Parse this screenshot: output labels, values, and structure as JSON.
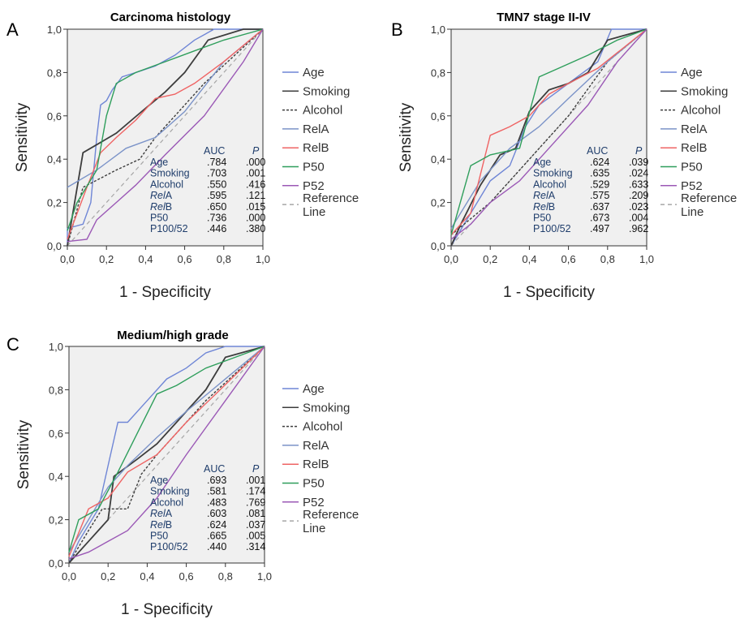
{
  "chart_data": [
    {
      "type": "line",
      "panel_label": "A",
      "title": "Carcinoma histology",
      "xlabel": "1 - Specificity",
      "ylabel": "Sensitivity",
      "xlim": [
        0,
        1
      ],
      "ylim": [
        0,
        1
      ],
      "xticks": [
        "0,0",
        "0,2",
        "0,4",
        "0,6",
        "0,8",
        "1,0"
      ],
      "yticks": [
        "0,0",
        "0,2",
        "0,4",
        "0,6",
        "0,8",
        "1,0"
      ],
      "legend": [
        "Age",
        "Smoking",
        "Alcohol",
        "RelA",
        "RelB",
        "P50",
        "P52",
        "Reference Line"
      ],
      "auc_header": [
        "AUC",
        "P"
      ],
      "auc_rows": [
        {
          "name": "Age",
          "auc": ".784",
          "p": ".000"
        },
        {
          "name": "Smoking",
          "auc": ".703",
          "p": ".001"
        },
        {
          "name": "Alcohol",
          "auc": ".550",
          "p": ".416"
        },
        {
          "name": "RelA",
          "auc": ".595",
          "p": ".121"
        },
        {
          "name": "RelB",
          "auc": ".650",
          "p": ".015"
        },
        {
          "name": "P50",
          "auc": ".736",
          "p": ".000"
        },
        {
          "name": "P100/52",
          "auc": ".446",
          "p": ".380"
        }
      ],
      "series": [
        {
          "name": "Age",
          "points": [
            [
              0,
              0
            ],
            [
              0,
              0.08
            ],
            [
              0.08,
              0.1
            ],
            [
              0.12,
              0.2
            ],
            [
              0.15,
              0.5
            ],
            [
              0.17,
              0.65
            ],
            [
              0.2,
              0.67
            ],
            [
              0.23,
              0.72
            ],
            [
              0.28,
              0.78
            ],
            [
              0.35,
              0.8
            ],
            [
              0.45,
              0.83
            ],
            [
              0.55,
              0.88
            ],
            [
              0.65,
              0.95
            ],
            [
              0.75,
              1
            ],
            [
              1,
              1
            ]
          ]
        },
        {
          "name": "Smoking",
          "points": [
            [
              0,
              0
            ],
            [
              0.08,
              0.43
            ],
            [
              0.25,
              0.52
            ],
            [
              0.38,
              0.62
            ],
            [
              0.5,
              0.71
            ],
            [
              0.6,
              0.8
            ],
            [
              0.72,
              0.95
            ],
            [
              0.9,
              1
            ],
            [
              1,
              1
            ]
          ]
        },
        {
          "name": "Alcohol",
          "points": [
            [
              0,
              0
            ],
            [
              0.08,
              0.27
            ],
            [
              0.25,
              0.35
            ],
            [
              0.37,
              0.4
            ],
            [
              0.45,
              0.5
            ],
            [
              0.55,
              0.6
            ],
            [
              0.7,
              0.75
            ],
            [
              1,
              1
            ]
          ]
        },
        {
          "name": "RelA",
          "points": [
            [
              0,
              0.27
            ],
            [
              0.15,
              0.35
            ],
            [
              0.3,
              0.45
            ],
            [
              0.45,
              0.5
            ],
            [
              0.6,
              0.62
            ],
            [
              0.8,
              0.85
            ],
            [
              1,
              1
            ]
          ]
        },
        {
          "name": "RelB",
          "points": [
            [
              0,
              0.03
            ],
            [
              0.1,
              0.27
            ],
            [
              0.17,
              0.43
            ],
            [
              0.25,
              0.5
            ],
            [
              0.35,
              0.58
            ],
            [
              0.45,
              0.68
            ],
            [
              0.55,
              0.7
            ],
            [
              0.65,
              0.75
            ],
            [
              0.8,
              0.85
            ],
            [
              1,
              1
            ]
          ]
        },
        {
          "name": "P50",
          "points": [
            [
              0,
              0.07
            ],
            [
              0.05,
              0.2
            ],
            [
              0.15,
              0.35
            ],
            [
              0.2,
              0.6
            ],
            [
              0.25,
              0.75
            ],
            [
              0.35,
              0.8
            ],
            [
              0.5,
              0.85
            ],
            [
              0.65,
              0.9
            ],
            [
              0.8,
              0.95
            ],
            [
              1,
              1
            ]
          ]
        },
        {
          "name": "P52",
          "points": [
            [
              0,
              0.02
            ],
            [
              0.1,
              0.03
            ],
            [
              0.15,
              0.12
            ],
            [
              0.25,
              0.2
            ],
            [
              0.35,
              0.28
            ],
            [
              0.5,
              0.42
            ],
            [
              0.7,
              0.6
            ],
            [
              0.9,
              0.85
            ],
            [
              1,
              1
            ]
          ]
        }
      ]
    },
    {
      "type": "line",
      "panel_label": "B",
      "title": "TMN7 stage II-IV",
      "xlabel": "1 - Specificity",
      "ylabel": "Sensitivity",
      "xlim": [
        0,
        1
      ],
      "ylim": [
        0,
        1
      ],
      "xticks": [
        "0,0",
        "0,2",
        "0,4",
        "0,6",
        "0,8",
        "1,0"
      ],
      "yticks": [
        "0,0",
        "0,2",
        "0,4",
        "0,6",
        "0,8",
        "1,0"
      ],
      "legend": [
        "Age",
        "Smoking",
        "Alcohol",
        "RelA",
        "RelB",
        "P50",
        "P52",
        "Reference Line"
      ],
      "auc_header": [
        "AUC",
        "P"
      ],
      "auc_rows": [
        {
          "name": "Age",
          "auc": ".624",
          "p": ".039"
        },
        {
          "name": "Smoking",
          "auc": ".635",
          "p": ".024"
        },
        {
          "name": "Alcohol",
          "auc": ".529",
          "p": ".633"
        },
        {
          "name": "RelA",
          "auc": ".575",
          "p": ".209"
        },
        {
          "name": "RelB",
          "auc": ".637",
          "p": ".023"
        },
        {
          "name": "P50",
          "auc": ".673",
          "p": ".004"
        },
        {
          "name": "P100/52",
          "auc": ".497",
          "p": ".962"
        }
      ],
      "series": [
        {
          "name": "Age",
          "points": [
            [
              0,
              0
            ],
            [
              0.1,
              0.15
            ],
            [
              0.2,
              0.3
            ],
            [
              0.3,
              0.37
            ],
            [
              0.38,
              0.55
            ],
            [
              0.45,
              0.65
            ],
            [
              0.6,
              0.75
            ],
            [
              0.75,
              0.85
            ],
            [
              0.82,
              1
            ],
            [
              1,
              1
            ]
          ]
        },
        {
          "name": "Smoking",
          "points": [
            [
              0,
              0
            ],
            [
              0.05,
              0.1
            ],
            [
              0.15,
              0.28
            ],
            [
              0.25,
              0.42
            ],
            [
              0.33,
              0.45
            ],
            [
              0.4,
              0.62
            ],
            [
              0.5,
              0.72
            ],
            [
              0.6,
              0.75
            ],
            [
              0.7,
              0.8
            ],
            [
              0.8,
              0.95
            ],
            [
              1,
              1
            ]
          ]
        },
        {
          "name": "Alcohol",
          "points": [
            [
              0,
              0.05
            ],
            [
              0.2,
              0.2
            ],
            [
              0.35,
              0.35
            ],
            [
              0.45,
              0.45
            ],
            [
              0.6,
              0.6
            ],
            [
              0.8,
              0.85
            ],
            [
              1,
              1
            ]
          ]
        },
        {
          "name": "RelA",
          "points": [
            [
              0,
              0.08
            ],
            [
              0.15,
              0.3
            ],
            [
              0.3,
              0.45
            ],
            [
              0.45,
              0.55
            ],
            [
              0.6,
              0.68
            ],
            [
              0.8,
              0.85
            ],
            [
              1,
              1
            ]
          ]
        },
        {
          "name": "RelB",
          "points": [
            [
              0,
              0.05
            ],
            [
              0.1,
              0.15
            ],
            [
              0.2,
              0.51
            ],
            [
              0.3,
              0.55
            ],
            [
              0.4,
              0.6
            ],
            [
              0.5,
              0.7
            ],
            [
              0.6,
              0.75
            ],
            [
              0.75,
              0.82
            ],
            [
              1,
              1
            ]
          ]
        },
        {
          "name": "P50",
          "points": [
            [
              0,
              0.05
            ],
            [
              0.1,
              0.37
            ],
            [
              0.2,
              0.42
            ],
            [
              0.35,
              0.45
            ],
            [
              0.45,
              0.78
            ],
            [
              0.55,
              0.82
            ],
            [
              0.7,
              0.88
            ],
            [
              0.85,
              0.95
            ],
            [
              1,
              1
            ]
          ]
        },
        {
          "name": "P52",
          "points": [
            [
              0,
              0.03
            ],
            [
              0.1,
              0.1
            ],
            [
              0.2,
              0.2
            ],
            [
              0.35,
              0.3
            ],
            [
              0.5,
              0.45
            ],
            [
              0.7,
              0.65
            ],
            [
              0.85,
              0.85
            ],
            [
              1,
              1
            ]
          ]
        }
      ]
    },
    {
      "type": "line",
      "panel_label": "C",
      "title": "Medium/high grade",
      "xlabel": "1 - Specificity",
      "ylabel": "Sensitivity",
      "xlim": [
        0,
        1
      ],
      "ylim": [
        0,
        1
      ],
      "xticks": [
        "0,0",
        "0,2",
        "0,4",
        "0,6",
        "0,8",
        "1,0"
      ],
      "yticks": [
        "0,0",
        "0,2",
        "0,4",
        "0,6",
        "0,8",
        "1,0"
      ],
      "legend": [
        "Age",
        "Smoking",
        "Alcohol",
        "RelA",
        "RelB",
        "P50",
        "P52",
        "Reference Line"
      ],
      "auc_header": [
        "AUC",
        "P"
      ],
      "auc_rows": [
        {
          "name": "Age",
          "auc": ".693",
          "p": ".001"
        },
        {
          "name": "Smoking",
          "auc": ".581",
          "p": ".174"
        },
        {
          "name": "Alcohol",
          "auc": ".483",
          "p": ".769"
        },
        {
          "name": "RelA",
          "auc": ".603",
          "p": ".081"
        },
        {
          "name": "RelB",
          "auc": ".624",
          "p": ".037"
        },
        {
          "name": "P50",
          "auc": ".665",
          "p": ".005"
        },
        {
          "name": "P100/52",
          "auc": ".440",
          "p": ".314"
        }
      ],
      "series": [
        {
          "name": "Age",
          "points": [
            [
              0,
              0
            ],
            [
              0.05,
              0.1
            ],
            [
              0.15,
              0.25
            ],
            [
              0.2,
              0.45
            ],
            [
              0.25,
              0.65
            ],
            [
              0.3,
              0.65
            ],
            [
              0.4,
              0.75
            ],
            [
              0.5,
              0.85
            ],
            [
              0.6,
              0.9
            ],
            [
              0.7,
              0.97
            ],
            [
              0.8,
              1
            ],
            [
              1,
              1
            ]
          ]
        },
        {
          "name": "Smoking",
          "points": [
            [
              0,
              0
            ],
            [
              0.1,
              0.1
            ],
            [
              0.2,
              0.2
            ],
            [
              0.23,
              0.4
            ],
            [
              0.35,
              0.48
            ],
            [
              0.45,
              0.55
            ],
            [
              0.55,
              0.65
            ],
            [
              0.7,
              0.8
            ],
            [
              0.8,
              0.95
            ],
            [
              1,
              1
            ]
          ]
        },
        {
          "name": "Alcohol",
          "points": [
            [
              0,
              0
            ],
            [
              0.1,
              0.15
            ],
            [
              0.17,
              0.25
            ],
            [
              0.3,
              0.25
            ],
            [
              0.37,
              0.41
            ],
            [
              0.45,
              0.5
            ],
            [
              0.55,
              0.6
            ],
            [
              0.7,
              0.75
            ],
            [
              1,
              1
            ]
          ]
        },
        {
          "name": "RelA",
          "points": [
            [
              0,
              0.05
            ],
            [
              0.1,
              0.2
            ],
            [
              0.2,
              0.35
            ],
            [
              0.3,
              0.45
            ],
            [
              0.45,
              0.58
            ],
            [
              0.6,
              0.7
            ],
            [
              0.8,
              0.85
            ],
            [
              1,
              1
            ]
          ]
        },
        {
          "name": "RelB",
          "points": [
            [
              0,
              0.03
            ],
            [
              0.1,
              0.25
            ],
            [
              0.2,
              0.3
            ],
            [
              0.3,
              0.42
            ],
            [
              0.45,
              0.5
            ],
            [
              0.6,
              0.65
            ],
            [
              0.75,
              0.78
            ],
            [
              1,
              1
            ]
          ]
        },
        {
          "name": "P50",
          "points": [
            [
              0,
              0.05
            ],
            [
              0.05,
              0.2
            ],
            [
              0.15,
              0.25
            ],
            [
              0.25,
              0.42
            ],
            [
              0.35,
              0.6
            ],
            [
              0.45,
              0.78
            ],
            [
              0.55,
              0.82
            ],
            [
              0.7,
              0.9
            ],
            [
              0.85,
              0.95
            ],
            [
              1,
              1
            ]
          ]
        },
        {
          "name": "P52",
          "points": [
            [
              0,
              0.02
            ],
            [
              0.1,
              0.05
            ],
            [
              0.2,
              0.1
            ],
            [
              0.3,
              0.15
            ],
            [
              0.45,
              0.3
            ],
            [
              0.6,
              0.5
            ],
            [
              0.8,
              0.75
            ],
            [
              1,
              1
            ]
          ]
        }
      ]
    }
  ],
  "colors": {
    "Age": "#6f86d6",
    "Smoking": "#3d3d3d",
    "Alcohol": "#3d3d3d",
    "RelA": "#7b93c8",
    "RelB": "#ef6464",
    "P50": "#2e9e5b",
    "P52": "#9b59b6",
    "Reference Line": "#a6a6a6",
    "plot_background": "#f0f0f0",
    "auc_text": "#1f3d6b"
  }
}
